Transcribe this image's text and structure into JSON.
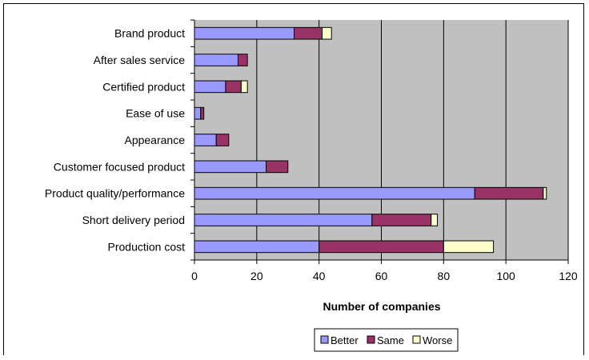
{
  "chart_data": {
    "type": "bar",
    "orientation": "horizontal",
    "stacked": true,
    "title": "",
    "xlabel": "Number of companies",
    "ylabel": "",
    "xlim": [
      0,
      120
    ],
    "xticks": [
      0,
      20,
      40,
      60,
      80,
      100,
      120
    ],
    "grid": "vertical major gridlines",
    "legend_position": "bottom",
    "plot_background": "#c0c0c0",
    "categories": [
      "Brand product",
      "After sales service",
      "Certified product",
      "Ease of use",
      "Appearance",
      "Customer focused product",
      "Product quality/performance",
      "Short delivery period",
      "Production cost"
    ],
    "series": [
      {
        "name": "Better",
        "color": "#9999ff",
        "values": [
          32,
          14,
          10,
          2,
          7,
          23,
          90,
          57,
          40
        ]
      },
      {
        "name": "Same",
        "color": "#993366",
        "values": [
          9,
          3,
          5,
          1,
          4,
          7,
          22,
          19,
          40
        ]
      },
      {
        "name": "Worse",
        "color": "#ffffcc",
        "values": [
          3,
          0,
          2,
          0,
          0,
          0,
          1,
          2,
          16
        ]
      }
    ]
  }
}
